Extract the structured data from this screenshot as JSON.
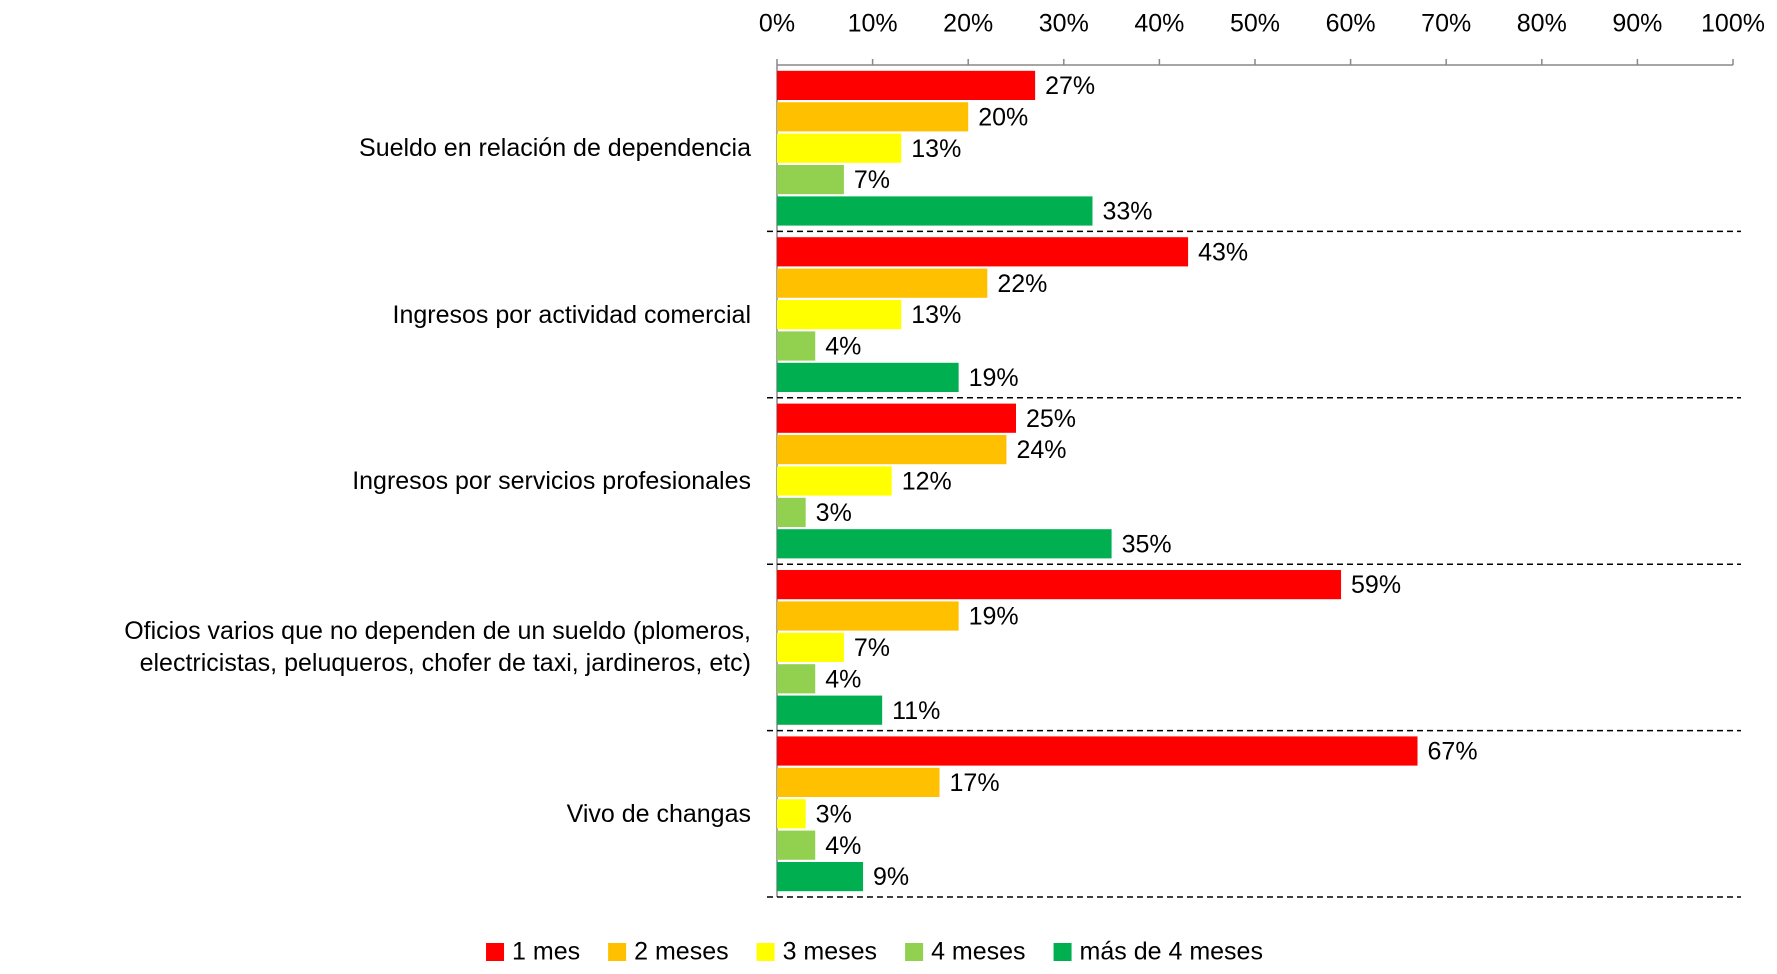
{
  "chart_data": {
    "type": "bar",
    "orientation": "horizontal",
    "categories": [
      "Sueldo en relación de dependencia",
      "Ingresos por actividad comercial",
      "Ingresos por servicios profesionales",
      "Oficios varios que no dependen de un sueldo (plomeros, electricistas, peluqueros, chofer de taxi, jardineros, etc)",
      "Vivo de changas"
    ],
    "series": [
      {
        "name": "1 mes",
        "color": "#ff0000",
        "values": [
          27,
          43,
          25,
          59,
          67
        ],
        "value_labels": [
          "27%",
          "43%",
          "25%",
          "59%",
          "67%"
        ]
      },
      {
        "name": "2 meses",
        "color": "#ffc000",
        "values": [
          20,
          22,
          24,
          19,
          17
        ],
        "value_labels": [
          "20%",
          "22%",
          "24%",
          "19%",
          "17%"
        ]
      },
      {
        "name": "3 meses",
        "color": "#ffff00",
        "values": [
          13,
          13,
          12,
          7,
          3
        ],
        "value_labels": [
          "13%",
          "13%",
          "12%",
          "7%",
          "3%"
        ]
      },
      {
        "name": "4 meses",
        "color": "#92d050",
        "values": [
          7,
          4,
          3,
          4,
          4
        ],
        "value_labels": [
          "7%",
          "4%",
          "3%",
          "4%",
          "4%"
        ]
      },
      {
        "name": "más de 4 meses",
        "color": "#00b050",
        "values": [
          33,
          19,
          35,
          11,
          9
        ],
        "value_labels": [
          "33%",
          "19%",
          "35%",
          "11%",
          "9%"
        ]
      }
    ],
    "xlim": [
      0,
      100
    ],
    "xticks": [
      {
        "value": 0,
        "label": "0%"
      },
      {
        "value": 10,
        "label": "10%"
      },
      {
        "value": 20,
        "label": "20%"
      },
      {
        "value": 30,
        "label": "30%"
      },
      {
        "value": 40,
        "label": "40%"
      },
      {
        "value": 50,
        "label": "50%"
      },
      {
        "value": 60,
        "label": "60%"
      },
      {
        "value": 70,
        "label": "70%"
      },
      {
        "value": 80,
        "label": "80%"
      },
      {
        "value": 90,
        "label": "90%"
      },
      {
        "value": 100,
        "label": "100%"
      }
    ],
    "legend": "bottom"
  }
}
